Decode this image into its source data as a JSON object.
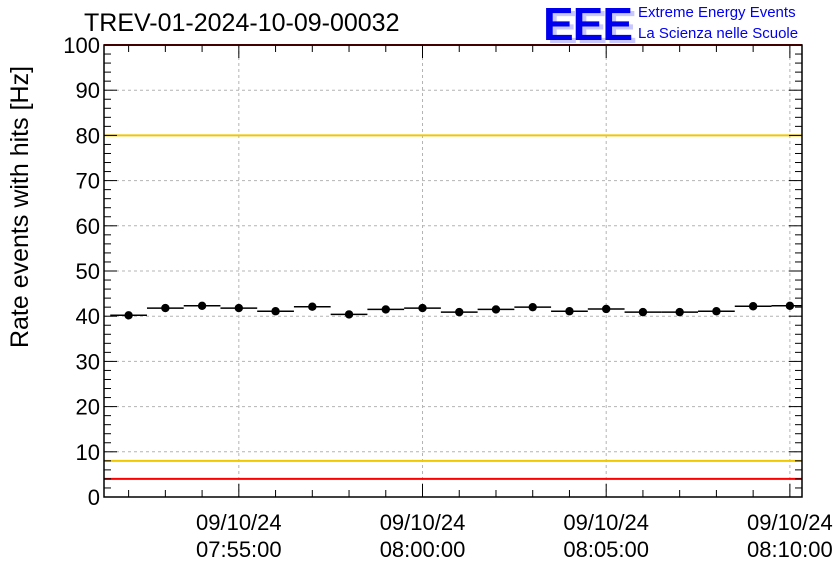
{
  "title": "TREV-01-2024-10-09-00032",
  "logo": {
    "mark": "EEE",
    "line1": "Extreme Energy Events",
    "line2": "La Scienza nelle Scuole",
    "color": "#0000ee"
  },
  "chart_data": {
    "type": "scatter",
    "title": "TREV-01-2024-10-09-00032",
    "xlabel": "",
    "ylabel": "Rate events with hits [Hz]",
    "ylim": [
      0,
      100
    ],
    "yticks": [
      0,
      10,
      20,
      30,
      40,
      50,
      60,
      70,
      80,
      90,
      100
    ],
    "xlim_minutes": [
      -8.67,
      10.33
    ],
    "xticks": [
      {
        "minute": -5,
        "date": "09/10/24",
        "time": "07:55:00"
      },
      {
        "minute": 0,
        "date": "09/10/24",
        "time": "08:00:00"
      },
      {
        "minute": 5,
        "date": "09/10/24",
        "time": "08:05:00"
      },
      {
        "minute": 10,
        "date": "09/10/24",
        "time": "08:10:00"
      }
    ],
    "grid": true,
    "series": [
      {
        "bin_width_minutes": 1,
        "x_minutes": [
          -8,
          -7,
          -6,
          -5,
          -4,
          -3,
          -2,
          -1,
          0,
          1,
          2,
          3,
          4,
          5,
          6,
          7,
          8,
          9,
          10
        ],
        "y": [
          40.2,
          41.8,
          42.3,
          41.8,
          41.1,
          42.1,
          40.4,
          41.5,
          41.8,
          40.9,
          41.5,
          42.0,
          41.1,
          41.6,
          40.9,
          40.9,
          41.1,
          42.2,
          42.3
        ],
        "color": "#000000"
      }
    ],
    "reference_lines": [
      {
        "y": 100,
        "color": "#ff0000"
      },
      {
        "y": 80,
        "color": "#f0c800"
      },
      {
        "y": 8,
        "color": "#f0c800"
      },
      {
        "y": 4,
        "color": "#ff0000"
      }
    ]
  }
}
